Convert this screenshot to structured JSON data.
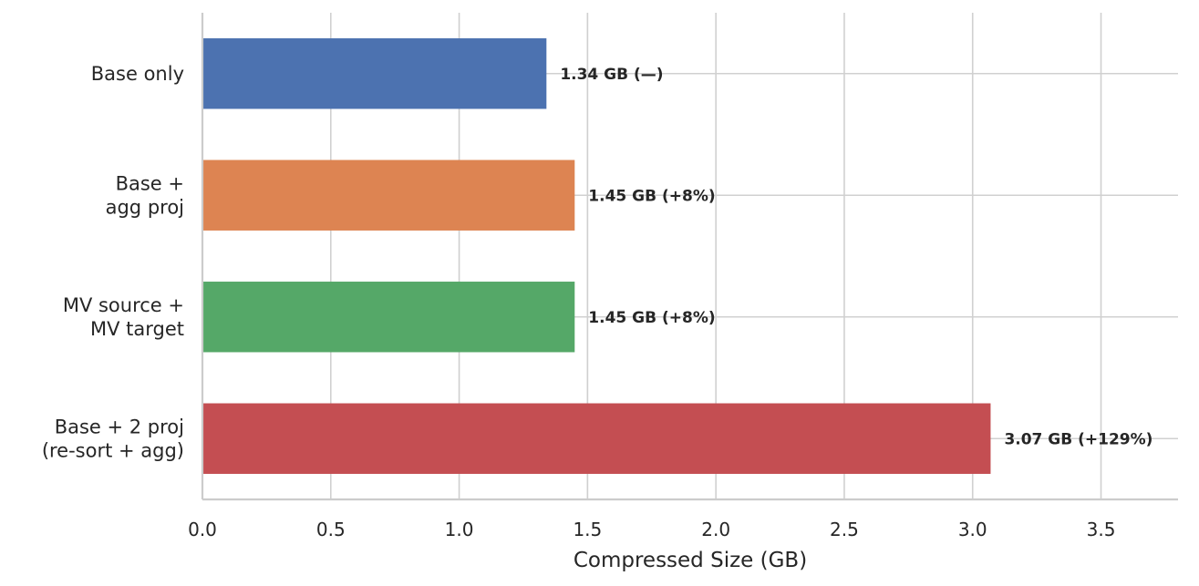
{
  "chart_data": {
    "type": "bar",
    "orientation": "horizontal",
    "title": "",
    "xlabel": "Compressed Size (GB)",
    "ylabel": "",
    "xlim": [
      0,
      3.8
    ],
    "xticks": [
      "0.0",
      "0.5",
      "1.0",
      "1.5",
      "2.0",
      "2.5",
      "3.0",
      "3.5"
    ],
    "categories": [
      [
        "Base only"
      ],
      [
        "Base +",
        "agg proj"
      ],
      [
        "MV source +",
        "MV target"
      ],
      [
        "Base + 2 proj",
        "(re-sort + agg)"
      ]
    ],
    "values": [
      1.34,
      1.45,
      1.45,
      3.07
    ],
    "data_labels": [
      "1.34 GB (—)",
      "1.45 GB (+8%)",
      "1.45 GB (+8%)",
      "3.07 GB (+129%)"
    ],
    "colors": [
      "#4c72b0",
      "#dd8452",
      "#55a868",
      "#c44e52"
    ],
    "grid": true,
    "spines": [
      "left",
      "bottom"
    ]
  }
}
